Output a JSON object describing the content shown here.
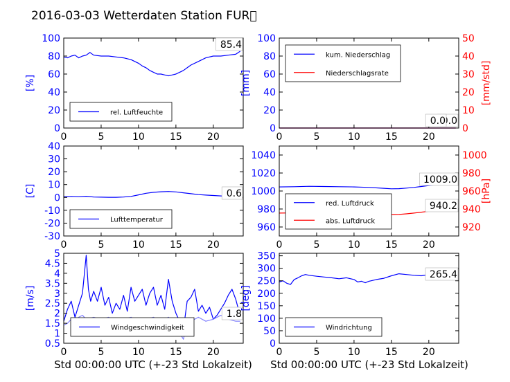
{
  "figure": {
    "title": "2016-03-03 Wetterdaten Station FUR\u0000",
    "xlabel": "Std 00:00:00 UTC (+-23 Std Lokalzeit)"
  },
  "colors": {
    "blue": "#0000ff",
    "red": "#ff0000",
    "lightblue": "#7f7fff",
    "axis": "#000000"
  },
  "chart_data": [
    {
      "id": "humidity",
      "type": "line",
      "ylabel": "[%]",
      "xlim": [
        0,
        24
      ],
      "xticks": [
        0,
        5,
        10,
        15,
        20
      ],
      "ylim": [
        0,
        100
      ],
      "yticks": [
        0,
        20,
        40,
        60,
        80,
        100
      ],
      "annotation": "85.4",
      "legend": {
        "position": "bottom-left",
        "entries": [
          {
            "label": "rel. Luftfeuchte",
            "color": "#0000ff"
          }
        ]
      },
      "series": [
        {
          "name": "rel. Luftfeuchte",
          "color": "#0000ff",
          "x": [
            0,
            0.5,
            1,
            1.5,
            2,
            2.5,
            3,
            3.5,
            4,
            5,
            6,
            7,
            8,
            9,
            10,
            10.5,
            11,
            11.5,
            12,
            12.5,
            13,
            13.5,
            14,
            14.5,
            15,
            15.5,
            16,
            16.5,
            17,
            18,
            19,
            20,
            21,
            22,
            23,
            23.6
          ],
          "y": [
            79,
            78,
            80,
            81,
            78,
            80,
            81,
            84,
            81,
            80,
            80,
            79,
            78,
            76,
            72,
            69,
            67,
            64,
            62,
            60,
            60,
            59,
            58,
            59,
            60,
            62,
            64,
            67,
            70,
            74,
            78,
            80,
            80,
            81,
            82,
            85.4
          ]
        }
      ]
    },
    {
      "id": "precip",
      "type": "line",
      "ylabel": "[mm]",
      "ylabel_right": "[mm/std]",
      "xlim": [
        0,
        24
      ],
      "xticks": [
        0,
        5,
        10,
        15,
        20
      ],
      "ylim": [
        0,
        100
      ],
      "yticks": [
        0,
        20,
        40,
        60,
        80,
        100
      ],
      "ylim_right": [
        0,
        50
      ],
      "yticks_right": [
        0,
        10,
        20,
        30,
        40,
        50
      ],
      "annotations": [
        "0.0",
        "0.0"
      ],
      "legend": {
        "position": "top-left",
        "entries": [
          {
            "label": "kum. Niederschlag",
            "color": "#0000ff"
          },
          {
            "label": "Niederschlagsrate",
            "color": "#ff0000"
          }
        ]
      },
      "series": [
        {
          "name": "kum. Niederschlag",
          "color": "#0000ff",
          "axis": "left",
          "x": [
            0,
            23.6
          ],
          "y": [
            0,
            0
          ]
        },
        {
          "name": "Niederschlagsrate",
          "color": "#ff0000",
          "axis": "right",
          "x": [
            0,
            23.6
          ],
          "y": [
            0,
            0
          ]
        }
      ]
    },
    {
      "id": "temperature",
      "type": "line",
      "ylabel": "[C]",
      "xlim": [
        0,
        24
      ],
      "xticks": [
        0,
        5,
        10,
        15,
        20
      ],
      "ylim": [
        -30,
        40
      ],
      "yticks": [
        -30,
        -20,
        -10,
        0,
        10,
        20,
        30,
        40
      ],
      "annotation": "0.6",
      "legend": {
        "position": "bottom-left",
        "entries": [
          {
            "label": "Lufttemperatur",
            "color": "#0000ff"
          }
        ]
      },
      "series": [
        {
          "name": "Lufttemperatur",
          "color": "#0000ff",
          "x": [
            0,
            1,
            2,
            3,
            4,
            5,
            6,
            7,
            8,
            9,
            10,
            11,
            12,
            13,
            14,
            15,
            16,
            17,
            18,
            19,
            20,
            21,
            22,
            23,
            23.6
          ],
          "y": [
            0.5,
            0.8,
            0.6,
            0.9,
            0.3,
            0.2,
            0.1,
            0.1,
            0.3,
            0.8,
            2,
            3.2,
            4,
            4.4,
            4.6,
            4.3,
            3.6,
            2.9,
            2.2,
            1.8,
            1.5,
            1.2,
            0.9,
            0.7,
            0.6
          ]
        }
      ]
    },
    {
      "id": "pressure",
      "type": "line",
      "ylabel_right": "[hPa]",
      "xlim": [
        0,
        24
      ],
      "xticks": [
        0,
        5,
        10,
        15,
        20
      ],
      "ylim": [
        950,
        1050
      ],
      "yticks": [
        960,
        980,
        1000,
        1020,
        1040
      ],
      "ylim_right": [
        910,
        1010
      ],
      "yticks_right": [
        920,
        940,
        960,
        980,
        1000
      ],
      "annotations": [
        "1009.0",
        "940.2"
      ],
      "legend": {
        "position": "bottom-left",
        "entries": [
          {
            "label": "red. Luftdruck",
            "color": "#0000ff"
          },
          {
            "label": "abs. Luftdruck",
            "color": "#ff0000"
          }
        ]
      },
      "series": [
        {
          "name": "red. Luftdruck",
          "color": "#0000ff",
          "axis": "left",
          "x": [
            0,
            2,
            4,
            6,
            8,
            10,
            12,
            14,
            15,
            16,
            17,
            18,
            19,
            20,
            21,
            22,
            23,
            23.6
          ],
          "y": [
            1004.5,
            1004.8,
            1005.2,
            1005.0,
            1004.8,
            1004.5,
            1004,
            1003,
            1002.5,
            1002.6,
            1003.2,
            1004,
            1005,
            1006,
            1007,
            1008,
            1008.6,
            1009
          ]
        },
        {
          "name": "abs. Luftdruck",
          "color": "#ff0000",
          "axis": "right",
          "x": [
            0,
            2,
            4,
            6,
            8,
            10,
            12,
            14,
            15,
            16,
            17,
            18,
            19,
            20,
            21,
            22,
            23,
            23.6
          ],
          "y": [
            935.5,
            935.7,
            936,
            935.9,
            935.7,
            935.5,
            935,
            934.2,
            933.8,
            933.9,
            934.6,
            935.5,
            936.5,
            937.5,
            938.5,
            939.4,
            939.9,
            940.2
          ]
        }
      ]
    },
    {
      "id": "windspeed",
      "type": "line",
      "ylabel": "[m/s]",
      "xlim": [
        0,
        24
      ],
      "xticks": [
        0,
        5,
        10,
        15,
        20
      ],
      "ylim": [
        0.5,
        5.0
      ],
      "yticks": [
        0.5,
        1.0,
        1.5,
        2.0,
        2.5,
        3.0,
        3.5,
        4.0,
        4.5,
        5.0
      ],
      "annotation": "1.8",
      "legend": {
        "position": "bottom-center",
        "entries": [
          {
            "label": "Windgeschwindigkeit",
            "color": "#0000ff"
          }
        ]
      },
      "series": [
        {
          "name": "Windgeschwindigkeit",
          "color": "#0000ff",
          "x": [
            0,
            0.5,
            1,
            1.5,
            2,
            2.5,
            3,
            3.3,
            3.6,
            4,
            4.5,
            5,
            5.5,
            6,
            6.5,
            7,
            7.5,
            8,
            8.5,
            9,
            9.5,
            10,
            10.5,
            11,
            11.5,
            12,
            12.5,
            13,
            13.5,
            14,
            14.5,
            15,
            15.5,
            16,
            16.5,
            17,
            17.5,
            18,
            18.5,
            19,
            19.5,
            20,
            20.5,
            21,
            21.5,
            22,
            22.5,
            23,
            23.5,
            23.6
          ],
          "y": [
            1.6,
            2.2,
            2.6,
            1.8,
            2.4,
            3.0,
            4.9,
            3.2,
            2.6,
            3.1,
            2.6,
            3.3,
            2.4,
            2.8,
            2.0,
            2.5,
            2.2,
            2.9,
            2.1,
            3.3,
            2.6,
            2.9,
            3.2,
            2.4,
            3.0,
            3.3,
            2.4,
            2.9,
            2.2,
            3.7,
            2.6,
            2.0,
            1.6,
            1.2,
            2.6,
            2.8,
            3.2,
            2.1,
            2.4,
            2.0,
            2.3,
            1.7,
            1.9,
            2.2,
            2.5,
            2.9,
            3.2,
            2.7,
            2.0,
            1.8
          ]
        },
        {
          "name": "",
          "color": "#7f7fff",
          "x": [
            0,
            0.5,
            1,
            1.5,
            2,
            2.5,
            3,
            4,
            5,
            6,
            7,
            8,
            9,
            10,
            11,
            12,
            13,
            14,
            15,
            15.5,
            16,
            16.5,
            17,
            18,
            19,
            20,
            21,
            22,
            23,
            23.6
          ],
          "y": [
            1.4,
            1.5,
            1.7,
            1.6,
            1.8,
            1.9,
            1.7,
            1.8,
            1.7,
            1.8,
            1.6,
            1.7,
            1.8,
            1.6,
            1.7,
            1.8,
            1.6,
            1.8,
            1.5,
            1.0,
            0.7,
            1.5,
            1.6,
            1.8,
            1.6,
            1.7,
            1.9,
            1.7,
            1.6,
            1.6
          ]
        }
      ]
    },
    {
      "id": "winddir",
      "type": "line",
      "ylabel": "[deg]",
      "xlim": [
        0,
        24
      ],
      "xticks": [
        0,
        5,
        10,
        15,
        20
      ],
      "ylim": [
        0,
        360
      ],
      "yticks": [
        0,
        50,
        100,
        150,
        200,
        250,
        300,
        350
      ],
      "annotation": "265.4",
      "legend": {
        "position": "bottom-left",
        "entries": [
          {
            "label": "Windrichtung",
            "color": "#0000ff"
          }
        ]
      },
      "series": [
        {
          "name": "Windrichtung",
          "color": "#0000ff",
          "x": [
            0,
            0.5,
            1,
            1.5,
            2,
            2.5,
            3,
            3.5,
            4,
            5,
            6,
            7,
            8,
            9,
            10,
            10.5,
            11,
            11.5,
            12,
            13,
            14,
            15,
            16,
            17,
            18,
            19,
            20,
            21,
            22,
            23,
            23.6
          ],
          "y": [
            245,
            250,
            240,
            235,
            255,
            262,
            270,
            275,
            272,
            268,
            265,
            262,
            258,
            262,
            255,
            245,
            248,
            242,
            248,
            255,
            260,
            270,
            278,
            275,
            272,
            270,
            275,
            278,
            272,
            280,
            265.4
          ]
        }
      ]
    }
  ]
}
